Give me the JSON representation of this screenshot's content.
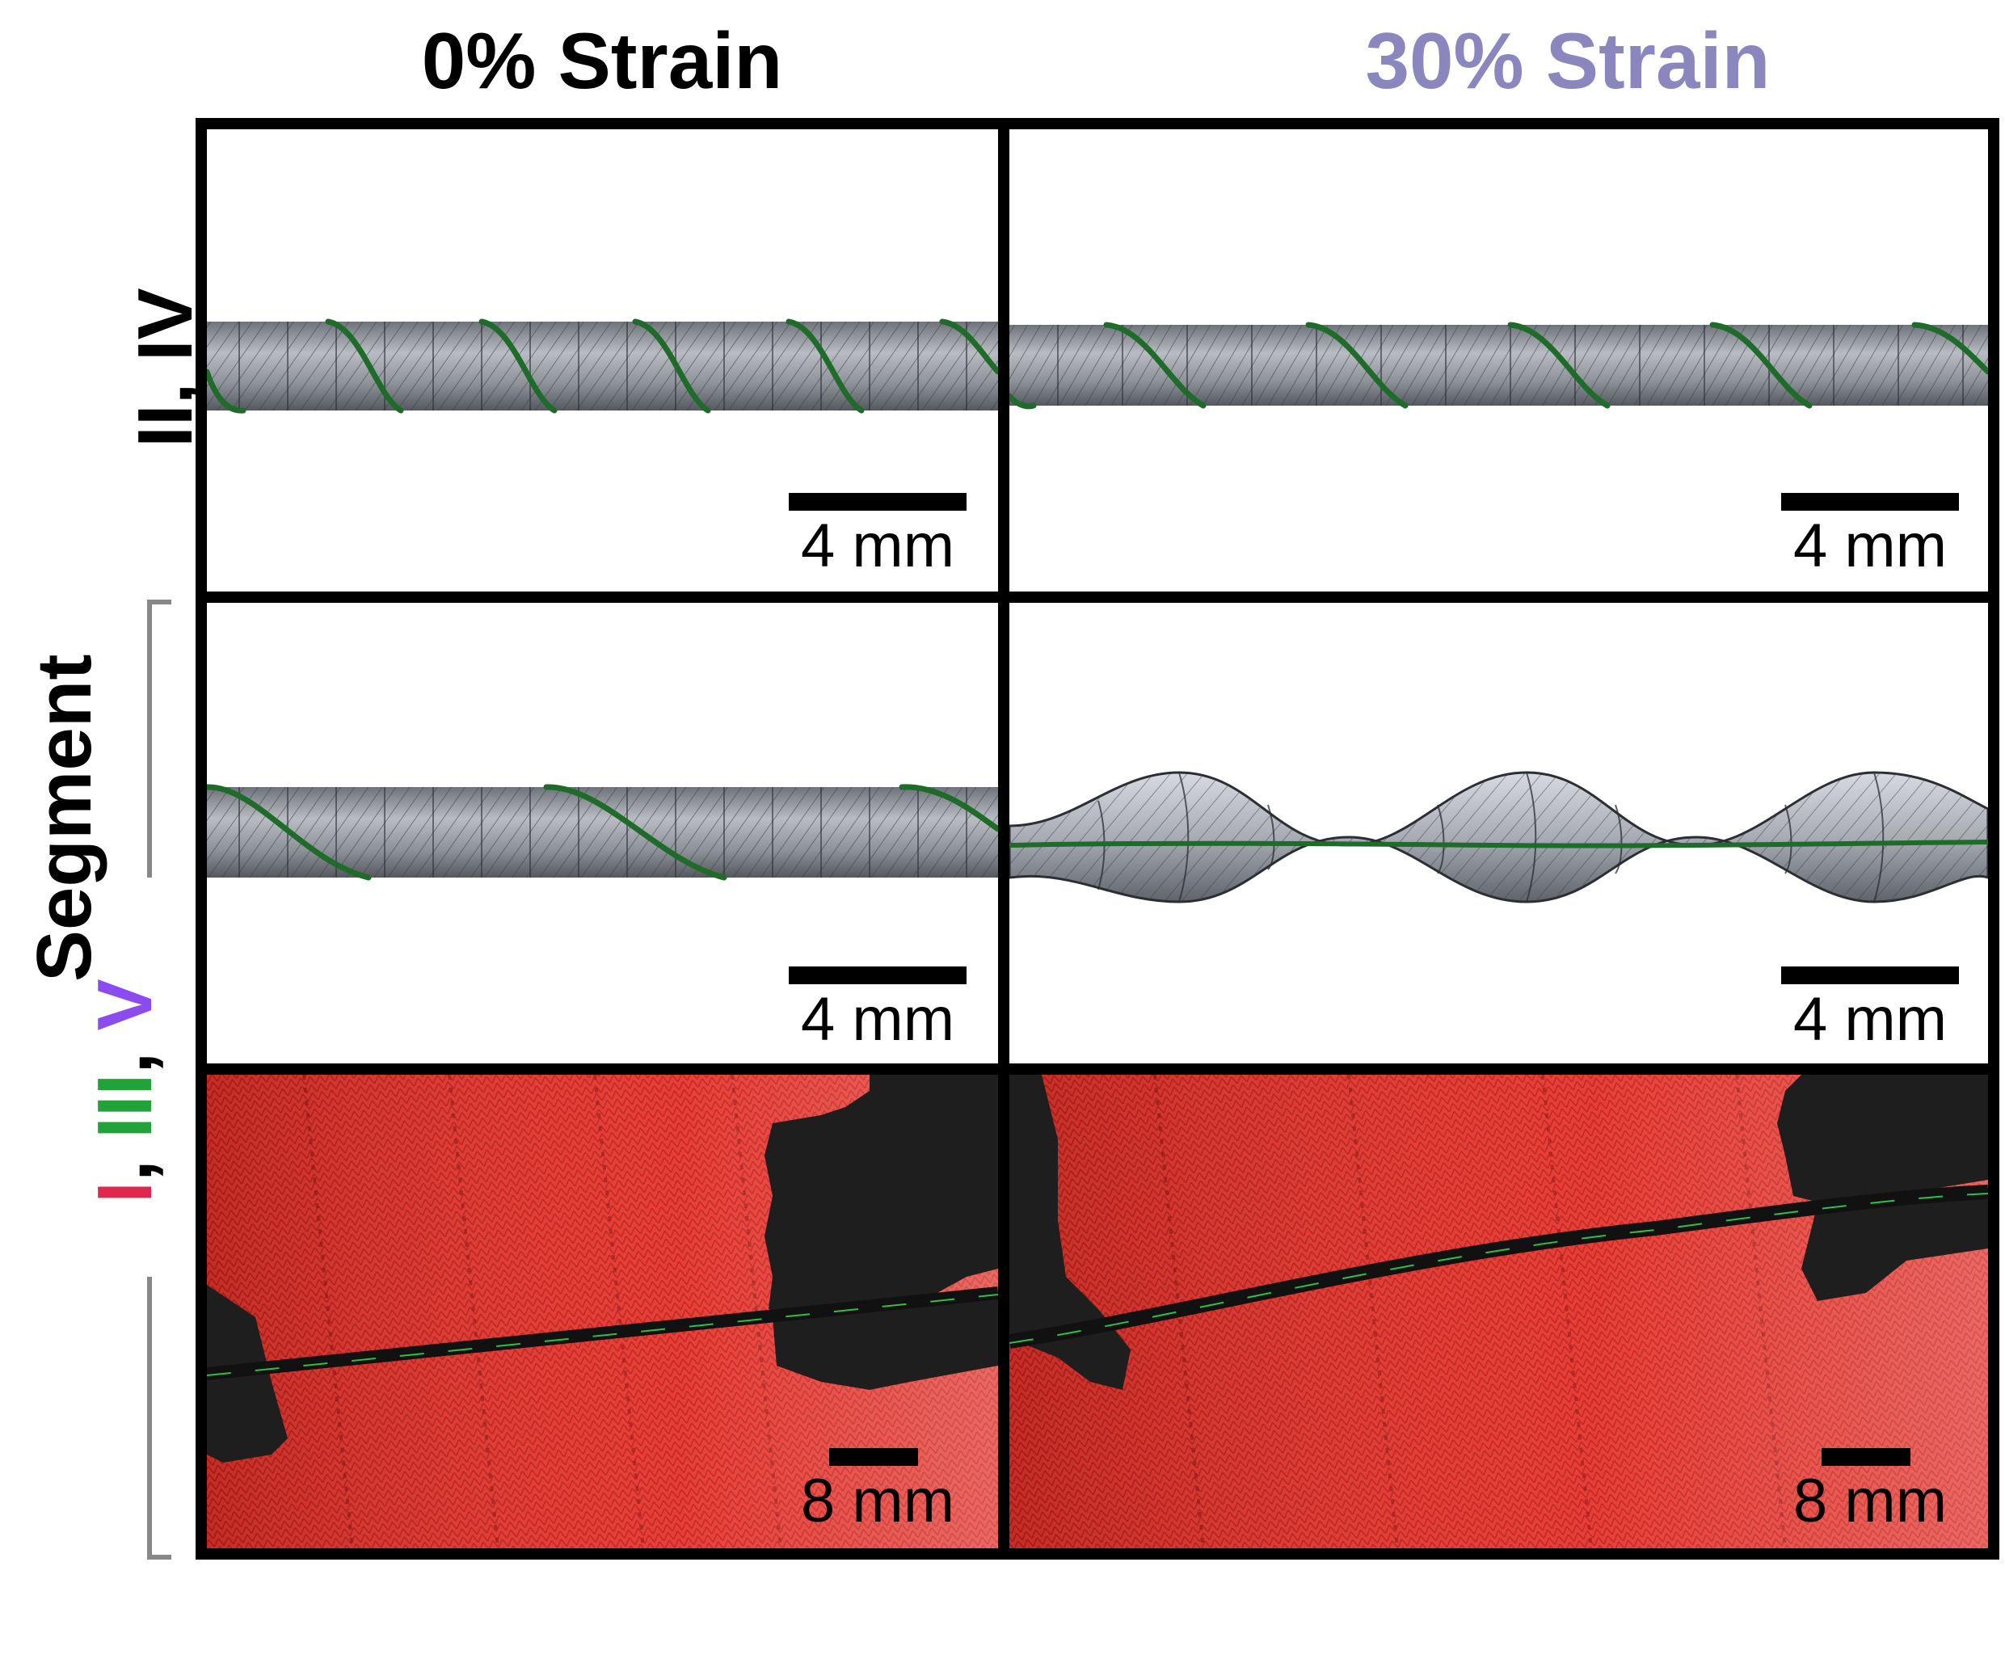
{
  "columns": [
    {
      "title": "0% Strain",
      "color": "#000000"
    },
    {
      "title": "30% Strain",
      "color": "#8B86BE"
    }
  ],
  "rows": {
    "top": {
      "label": "II, IV"
    },
    "group": {
      "label_prefix_I": "I",
      "sep1": ", ",
      "label_III": "III",
      "sep2": ", ",
      "label_V": "V",
      "word": "Segment",
      "colors": {
        "I": "#E0284F",
        "III": "#22A339",
        "V": "#8A4CF0"
      }
    }
  },
  "scalebars": {
    "r1c1": "4 mm",
    "r1c2": "4 mm",
    "r2c1": "4 mm",
    "r2c2": "4 mm",
    "r3c1": "8 mm",
    "r3c2": "8 mm"
  },
  "colors": {
    "fiber": "#9A9EA6",
    "fiber_dark": "#5C6068",
    "helix": "#1F6B2A",
    "fabric": "#E8322C",
    "fabric_dark": "#B81E1A",
    "patch": "#1E1E1E"
  }
}
